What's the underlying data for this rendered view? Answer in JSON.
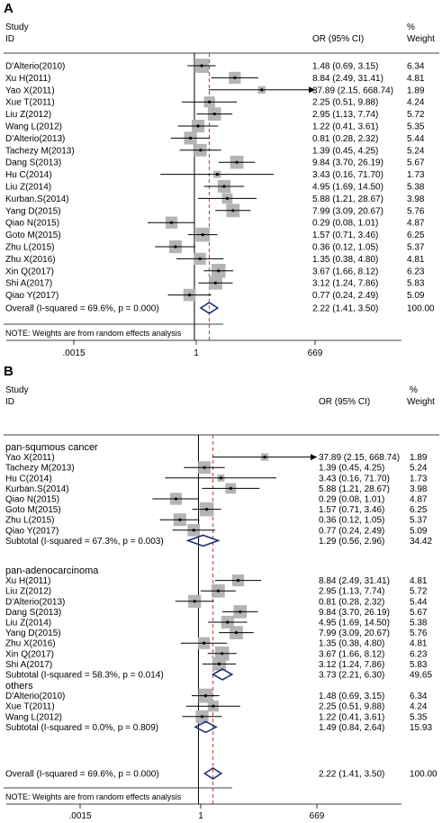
{
  "chart_data": [
    {
      "type": "forest",
      "panel_label": "A",
      "header": {
        "study": "Study",
        "id": "ID",
        "or_ci": "OR (95% CI)",
        "percent": "%",
        "weight": "Weight"
      },
      "axis": {
        "scale": "log",
        "ticks": [
          ".0015",
          "1",
          "669"
        ],
        "range": [
          0.0015,
          669
        ],
        "reference": 1
      },
      "studies": [
        {
          "name": "D'Alterio(2010)",
          "or": 1.48,
          "lo": 0.69,
          "hi": 3.15,
          "ci_text": "1.48 (0.69, 3.15)",
          "weight": "6.34"
        },
        {
          "name": "Xu H(2011)",
          "or": 8.84,
          "lo": 2.49,
          "hi": 31.41,
          "ci_text": "8.84 (2.49, 31.41)",
          "weight": "4.81"
        },
        {
          "name": "Yao X(2011)",
          "or": 37.89,
          "lo": 2.15,
          "hi": 668.74,
          "ci_text": "37.89 (2.15, 668.74)",
          "weight": "1.89",
          "arrow": true
        },
        {
          "name": "Xue T(2011)",
          "or": 2.25,
          "lo": 0.51,
          "hi": 9.88,
          "ci_text": "2.25 (0.51, 9.88)",
          "weight": "4.24"
        },
        {
          "name": "Liu Z(2012)",
          "or": 2.95,
          "lo": 1.13,
          "hi": 7.74,
          "ci_text": "2.95 (1.13, 7.74)",
          "weight": "5.72"
        },
        {
          "name": "Wang L(2012)",
          "or": 1.22,
          "lo": 0.41,
          "hi": 3.61,
          "ci_text": "1.22 (0.41, 3.61)",
          "weight": "5.35"
        },
        {
          "name": "D'Alterio(2013)",
          "or": 0.81,
          "lo": 0.28,
          "hi": 2.32,
          "ci_text": "0.81 (0.28, 2.32)",
          "weight": "5.44"
        },
        {
          "name": "Tachezy M(2013)",
          "or": 1.39,
          "lo": 0.45,
          "hi": 4.25,
          "ci_text": "1.39 (0.45, 4.25)",
          "weight": "5.24"
        },
        {
          "name": "Dang S(2013)",
          "or": 9.84,
          "lo": 3.7,
          "hi": 26.19,
          "ci_text": "9.84 (3.70, 26.19)",
          "weight": "5.67"
        },
        {
          "name": "Hu C(2014)",
          "or": 3.43,
          "lo": 0.16,
          "hi": 71.7,
          "ci_text": "3.43 (0.16, 71.70)",
          "weight": "1.73"
        },
        {
          "name": "Liu Z(2014)",
          "or": 4.95,
          "lo": 1.69,
          "hi": 14.5,
          "ci_text": "4.95 (1.69, 14.50)",
          "weight": "5.38"
        },
        {
          "name": "Kurban.S(2014)",
          "or": 5.88,
          "lo": 1.21,
          "hi": 28.67,
          "ci_text": "5.88 (1.21, 28.67)",
          "weight": "3.98"
        },
        {
          "name": "Yang D(2015)",
          "or": 7.99,
          "lo": 3.09,
          "hi": 20.67,
          "ci_text": "7.99 (3.09, 20.67)",
          "weight": "5.76"
        },
        {
          "name": "Qiao N(2015)",
          "or": 0.29,
          "lo": 0.08,
          "hi": 1.01,
          "ci_text": "0.29 (0.08, 1.01)",
          "weight": "4.87"
        },
        {
          "name": "Goto M(2015)",
          "or": 1.57,
          "lo": 0.71,
          "hi": 3.46,
          "ci_text": "1.57 (0.71, 3.46)",
          "weight": "6.25"
        },
        {
          "name": "Zhu L(2015)",
          "or": 0.36,
          "lo": 0.12,
          "hi": 1.05,
          "ci_text": "0.36 (0.12, 1.05)",
          "weight": "5.37"
        },
        {
          "name": "Zhu X(2016)",
          "or": 1.35,
          "lo": 0.38,
          "hi": 4.8,
          "ci_text": "1.35 (0.38, 4.80)",
          "weight": "4.81"
        },
        {
          "name": "Xin Q(2017)",
          "or": 3.67,
          "lo": 1.66,
          "hi": 8.12,
          "ci_text": "3.67 (1.66, 8.12)",
          "weight": "6.23"
        },
        {
          "name": "Shi A(2017)",
          "or": 3.12,
          "lo": 1.24,
          "hi": 7.86,
          "ci_text": "3.12 (1.24, 7.86)",
          "weight": "5.83"
        },
        {
          "name": "Qiao Y(2017)",
          "or": 0.77,
          "lo": 0.24,
          "hi": 2.49,
          "ci_text": "0.77 (0.24, 2.49)",
          "weight": "5.09"
        }
      ],
      "overall": {
        "label": "Overall  (I-squared = 69.6%, p = 0.000)",
        "or": 2.22,
        "lo": 1.41,
        "hi": 3.5,
        "ci_text": "2.22 (1.41, 3.50)",
        "weight": "100.00"
      },
      "note": "NOTE: Weights are from random effects analysis"
    },
    {
      "type": "forest",
      "panel_label": "B",
      "header": {
        "study": "Study",
        "id": "ID",
        "or_ci": "OR (95% CI)",
        "percent": "%",
        "weight": "Weight"
      },
      "axis": {
        "scale": "log",
        "ticks": [
          ".0015",
          "1",
          "669"
        ],
        "range": [
          0.0015,
          669
        ],
        "reference": 1
      },
      "groups": [
        {
          "name": "pan-squmous cancer",
          "studies": [
            {
              "name": "Yao X(2011)",
              "or": 37.89,
              "lo": 2.15,
              "hi": 668.74,
              "ci_text": "37.89 (2.15, 668.74)",
              "weight": "1.89",
              "arrow": true
            },
            {
              "name": "Tachezy M(2013)",
              "or": 1.39,
              "lo": 0.45,
              "hi": 4.25,
              "ci_text": "1.39 (0.45, 4.25)",
              "weight": "5.24"
            },
            {
              "name": "Hu C(2014)",
              "or": 3.43,
              "lo": 0.16,
              "hi": 71.7,
              "ci_text": "3.43 (0.16, 71.70)",
              "weight": "1.73"
            },
            {
              "name": "Kurban.S(2014)",
              "or": 5.88,
              "lo": 1.21,
              "hi": 28.67,
              "ci_text": "5.88 (1.21, 28.67)",
              "weight": "3.98"
            },
            {
              "name": "Qiao N(2015)",
              "or": 0.29,
              "lo": 0.08,
              "hi": 1.01,
              "ci_text": "0.29 (0.08, 1.01)",
              "weight": "4.87"
            },
            {
              "name": "Goto M(2015)",
              "or": 1.57,
              "lo": 0.71,
              "hi": 3.46,
              "ci_text": "1.57 (0.71, 3.46)",
              "weight": "6.25"
            },
            {
              "name": "Zhu L(2015)",
              "or": 0.36,
              "lo": 0.12,
              "hi": 1.05,
              "ci_text": "0.36 (0.12, 1.05)",
              "weight": "5.37"
            },
            {
              "name": "Qiao Y(2017)",
              "or": 0.77,
              "lo": 0.24,
              "hi": 2.49,
              "ci_text": "0.77 (0.24, 2.49)",
              "weight": "5.09"
            }
          ],
          "subtotal": {
            "label": "Subtotal  (I-squared = 67.3%, p = 0.003)",
            "or": 1.29,
            "lo": 0.56,
            "hi": 2.96,
            "ci_text": "1.29 (0.56, 2.96)",
            "weight": "34.42"
          }
        },
        {
          "name": "pan-adenocarcinoma",
          "studies": [
            {
              "name": "Xu H(2011)",
              "or": 8.84,
              "lo": 2.49,
              "hi": 31.41,
              "ci_text": "8.84 (2.49, 31.41)",
              "weight": "4.81"
            },
            {
              "name": "Liu Z(2012)",
              "or": 2.95,
              "lo": 1.13,
              "hi": 7.74,
              "ci_text": "2.95 (1.13, 7.74)",
              "weight": "5.72"
            },
            {
              "name": "D'Alterio(2013)",
              "or": 0.81,
              "lo": 0.28,
              "hi": 2.32,
              "ci_text": "0.81 (0.28, 2.32)",
              "weight": "5.44"
            },
            {
              "name": "Dang S(2013)",
              "or": 9.84,
              "lo": 3.7,
              "hi": 26.19,
              "ci_text": "9.84 (3.70, 26.19)",
              "weight": "5.67"
            },
            {
              "name": "Liu Z(2014)",
              "or": 4.95,
              "lo": 1.69,
              "hi": 14.5,
              "ci_text": "4.95 (1.69, 14.50)",
              "weight": "5.38"
            },
            {
              "name": "Yang D(2015)",
              "or": 7.99,
              "lo": 3.09,
              "hi": 20.67,
              "ci_text": "7.99 (3.09, 20.67)",
              "weight": "5.76"
            },
            {
              "name": "Zhu X(2016)",
              "or": 1.35,
              "lo": 0.38,
              "hi": 4.8,
              "ci_text": "1.35 (0.38, 4.80)",
              "weight": "4.81"
            },
            {
              "name": "Xin Q(2017)",
              "or": 3.67,
              "lo": 1.66,
              "hi": 8.12,
              "ci_text": "3.67 (1.66, 8.12)",
              "weight": "6.23"
            },
            {
              "name": "Shi A(2017)",
              "or": 3.12,
              "lo": 1.24,
              "hi": 7.86,
              "ci_text": "3.12 (1.24, 7.86)",
              "weight": "5.83"
            }
          ],
          "subtotal": {
            "label": "Subtotal  (I-squared = 58.3%, p = 0.014)",
            "or": 3.73,
            "lo": 2.21,
            "hi": 6.3,
            "ci_text": "3.73 (2.21, 6.30)",
            "weight": "49.65"
          }
        },
        {
          "name": "others",
          "studies": [
            {
              "name": "D'Alterio(2010)",
              "or": 1.48,
              "lo": 0.69,
              "hi": 3.15,
              "ci_text": "1.48 (0.69, 3.15)",
              "weight": "6.34"
            },
            {
              "name": "Xue T(2011)",
              "or": 2.25,
              "lo": 0.51,
              "hi": 9.88,
              "ci_text": "2.25 (0.51, 9.88)",
              "weight": "4.24"
            },
            {
              "name": "Wang L(2012)",
              "or": 1.22,
              "lo": 0.41,
              "hi": 3.61,
              "ci_text": "1.22 (0.41, 3.61)",
              "weight": "5.35"
            }
          ],
          "subtotal": {
            "label": "Subtotal  (I-squared = 0.0%, p = 0.809)",
            "or": 1.49,
            "lo": 0.84,
            "hi": 2.64,
            "ci_text": "1.49 (0.84, 2.64)",
            "weight": "15.93"
          }
        }
      ],
      "overall": {
        "label": "Overall  (I-squared = 69.6%, p = 0.000)",
        "or": 2.22,
        "lo": 1.41,
        "hi": 3.5,
        "ci_text": "2.22 (1.41, 3.50)",
        "weight": "100.00"
      },
      "note": "NOTE: Weights are from random effects analysis"
    }
  ]
}
